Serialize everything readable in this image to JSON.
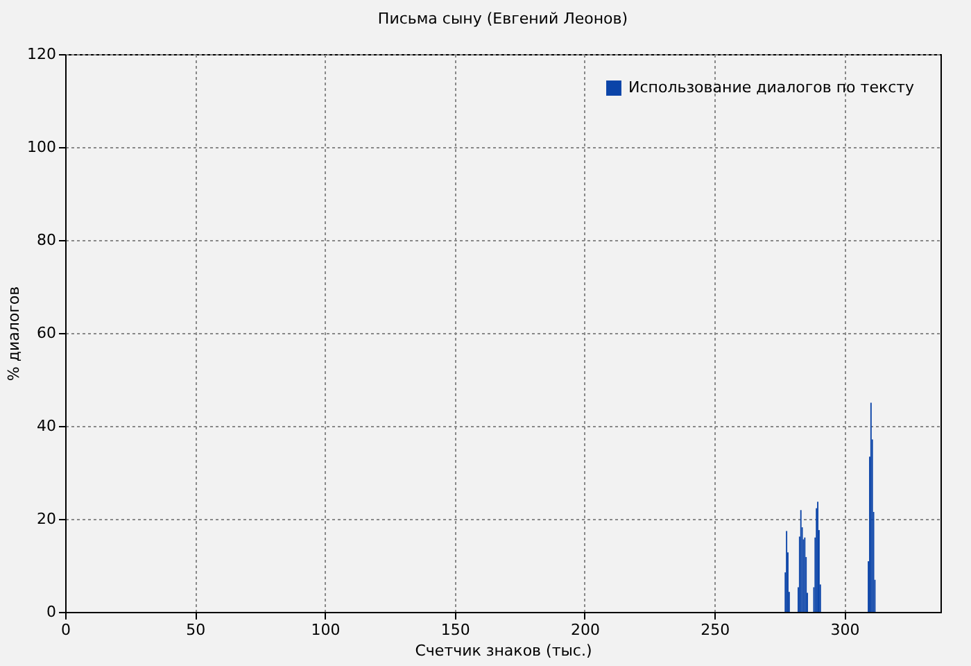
{
  "chart_data": {
    "type": "histogram",
    "title": "Письма сыну (Евгений Леонов)",
    "xlabel": "Счетчик знаков (тыс.)",
    "ylabel": "% диалогов",
    "bins": [
      277,
      277.5,
      278,
      278.5,
      279,
      279.5,
      280,
      280.5,
      281,
      281.5,
      282,
      282.5,
      283,
      283.5,
      284,
      284.5,
      285,
      285.5,
      286,
      286.5,
      287,
      287.5,
      288,
      288.5,
      289,
      289.5,
      290,
      290.5,
      291,
      291.5,
      292,
      292.5,
      293,
      293.5,
      294,
      294.5,
      295,
      295.5,
      296,
      296.5,
      297,
      297.5,
      298,
      298.5,
      299,
      299.5,
      300,
      300.5,
      301,
      301.5,
      302,
      302.5,
      303,
      303.5,
      304,
      304.5,
      305,
      305.5,
      306,
      306.5,
      307,
      307.5,
      308,
      308.5,
      309,
      309.5,
      310,
      310.5,
      311,
      311.5,
      312
    ],
    "series": [
      {
        "name": "Использование диалогов по тексту",
        "color": "#0b44a8",
        "values": [
          8.5,
          17.4,
          12.8,
          4.3,
          0,
          0,
          0,
          0,
          0,
          0,
          5.3,
          16.2,
          21.9,
          18.2,
          15.6,
          16.0,
          11.8,
          4.1,
          0,
          0,
          0,
          0,
          5.3,
          16.0,
          22.3,
          23.7,
          17.6,
          5.9,
          0,
          0,
          0,
          0,
          0,
          0,
          0,
          0,
          0,
          0,
          0,
          0,
          0,
          0,
          0,
          0,
          0,
          0,
          0,
          0,
          0,
          0,
          0,
          0,
          0,
          0,
          0,
          0,
          0,
          0,
          0,
          0,
          0,
          0,
          0,
          0,
          10.9,
          33.4,
          45,
          37.1,
          21.5,
          6.9
        ]
      }
    ],
    "xlim": [
      0,
      337
    ],
    "xticks": [
      0,
      50,
      100,
      150,
      200,
      250,
      300
    ],
    "ylim": [
      0,
      120
    ],
    "yticks": [
      0,
      20,
      40,
      60,
      80,
      100,
      120
    ],
    "grid": true,
    "legend": "top right"
  }
}
